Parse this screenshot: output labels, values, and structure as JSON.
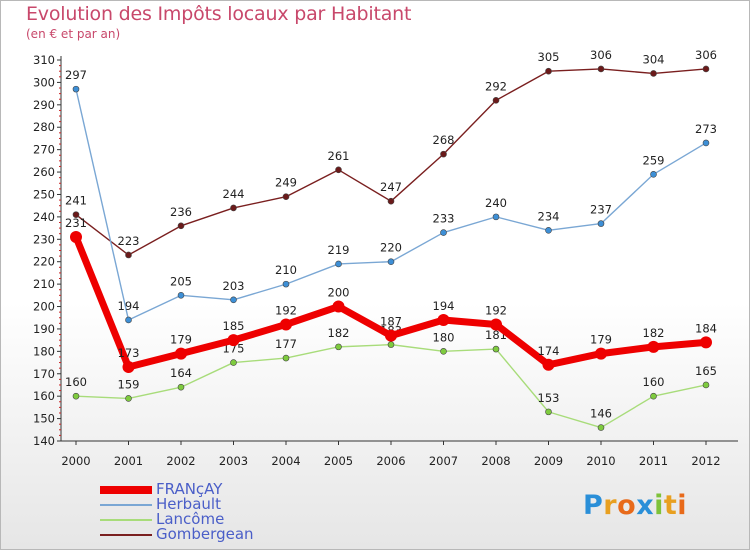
{
  "header": {
    "title": "Evolution des Impôts locaux par Habitant",
    "subtitle": "(en € et par an)"
  },
  "chart_data": {
    "type": "line",
    "title": "Evolution des Impôts locaux par Habitant",
    "subtitle": "(en € et par an)",
    "xlabel": "",
    "ylabel": "",
    "ylim": [
      140,
      310
    ],
    "y_ticks": [
      140,
      150,
      160,
      170,
      180,
      190,
      200,
      210,
      220,
      230,
      240,
      250,
      260,
      270,
      280,
      290,
      300,
      310
    ],
    "grid": false,
    "legend_position": "bottom-left",
    "categories": [
      "2000",
      "2001",
      "2002",
      "2003",
      "2004",
      "2005",
      "2006",
      "2007",
      "2008",
      "2009",
      "2010",
      "2011",
      "2012"
    ],
    "series": [
      {
        "name": "Gombergean",
        "color": "#7a1f1f",
        "marker": "#6b1a1a",
        "values": [
          241,
          223,
          236,
          244,
          249,
          261,
          247,
          268,
          292,
          305,
          306,
          304,
          306
        ]
      },
      {
        "name": "Herbault",
        "color": "#7aa7d4",
        "marker": "#3d8fd6",
        "values": [
          297,
          194,
          205,
          203,
          210,
          219,
          220,
          233,
          240,
          234,
          237,
          259,
          273
        ]
      },
      {
        "name": "Lancôme",
        "color": "#a8dc7a",
        "marker": "#7ecb3e",
        "values": [
          160,
          159,
          164,
          175,
          177,
          182,
          183,
          180,
          181,
          153,
          146,
          160,
          165
        ]
      },
      {
        "name": "FRANçAY",
        "color": "#ee0000",
        "marker": "#ee0000",
        "values": [
          231,
          173,
          179,
          185,
          192,
          200,
          187,
          194,
          192,
          174,
          179,
          182,
          184
        ]
      }
    ]
  },
  "legend": {
    "items": [
      {
        "label": "FRANçAY",
        "color": "#ee0000"
      },
      {
        "label": "Herbault",
        "color": "#7aa7d4"
      },
      {
        "label": "Lancôme",
        "color": "#a8dc7a"
      },
      {
        "label": "Gombergean",
        "color": "#7a1f1f"
      }
    ]
  },
  "logo": {
    "text": "Proxiti",
    "letter_colors": [
      "#2a8fd8",
      "#e8a020",
      "#e86a1a",
      "#2a8fd8",
      "#7ec23a",
      "#e8a020",
      "#e86a1a"
    ]
  }
}
